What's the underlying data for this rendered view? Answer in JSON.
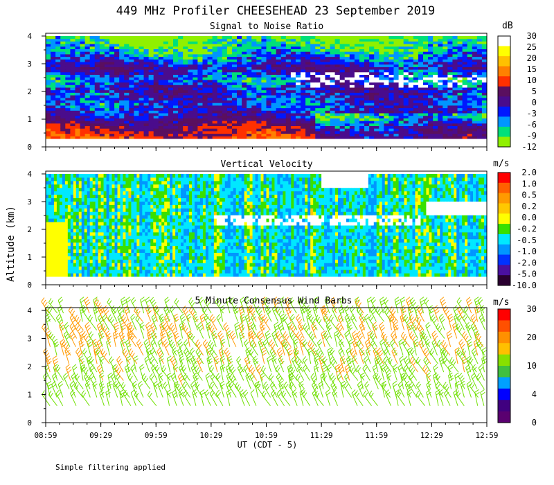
{
  "title": "449 MHz Profiler CHEESEHEAD 23 September 2019",
  "footnote": "Simple filtering applied",
  "ylabel": "Altitude (km)",
  "xlabel": "UT  (CDT - 5)",
  "chart_data": [
    {
      "type": "heatmap",
      "title": "Signal to Noise Ratio",
      "units": "dB",
      "x_ticks": [
        "08:59",
        "09:29",
        "09:59",
        "10:29",
        "10:59",
        "11:29",
        "11:59",
        "12:29",
        "12:59"
      ],
      "y_ticks": [
        "0",
        "1",
        "2",
        "3",
        "4"
      ],
      "ylim": [
        0,
        4.1
      ],
      "colorbar": {
        "labels": [
          "30",
          "25",
          "20",
          "15",
          "10",
          "5",
          "0",
          "-3",
          "-6",
          "-9",
          "-12"
        ],
        "colors": [
          "#ffffff",
          "#ffff00",
          "#ffc000",
          "#ff8000",
          "#ff3000",
          "#5a0f5f",
          "#4a0c8c",
          "#0018ff",
          "#0096ff",
          "#00e07a",
          "#90f000"
        ]
      },
      "valid_range_km": [
        0.3,
        4.0
      ],
      "profile_dB": [
        {
          "alt_km": 0.3,
          "value": 12
        },
        {
          "alt_km": 0.7,
          "value": 8
        },
        {
          "alt_km": 1.0,
          "value": 2
        },
        {
          "alt_km": 1.5,
          "value": -2
        },
        {
          "alt_km": 2.0,
          "value": 1
        },
        {
          "alt_km": 2.4,
          "value": -4
        },
        {
          "alt_km": 2.8,
          "value": 2
        },
        {
          "alt_km": 3.2,
          "value": -4
        },
        {
          "alt_km": 3.6,
          "value": -8
        },
        {
          "alt_km": 4.0,
          "value": -11
        }
      ]
    },
    {
      "type": "heatmap",
      "title": "Vertical Velocity",
      "units": "m/s",
      "x_ticks": [
        "08:59",
        "09:29",
        "09:59",
        "10:29",
        "10:59",
        "11:29",
        "11:59",
        "12:29",
        "12:59"
      ],
      "y_ticks": [
        "0",
        "1",
        "2",
        "3",
        "4"
      ],
      "ylim": [
        0,
        4.1
      ],
      "colorbar": {
        "labels": [
          "2.0",
          "1.0",
          "0.5",
          "0.2",
          "0.0",
          "-0.2",
          "-0.5",
          "-1.0",
          "-2.0",
          "-5.0",
          "-10.0"
        ],
        "colors": [
          "#ff0000",
          "#ff6000",
          "#ff9a00",
          "#ffc800",
          "#ffff00",
          "#38e000",
          "#00e8ff",
          "#0096ff",
          "#0032ff",
          "#4a10a0",
          "#2a0030"
        ]
      },
      "valid_range_km": [
        0.3,
        4.0
      ],
      "typical_values_m_s": [
        -0.5,
        -0.2,
        0.0
      ]
    },
    {
      "type": "wind-barbs",
      "title": "5 Minute Consensus Wind Barbs",
      "units": "m/s",
      "x_ticks": [
        "08:59",
        "09:29",
        "09:59",
        "10:29",
        "10:59",
        "11:29",
        "11:59",
        "12:29",
        "12:59"
      ],
      "y_ticks": [
        "0",
        "1",
        "2",
        "3",
        "4"
      ],
      "ylim": [
        0,
        4.1
      ],
      "colorbar": {
        "labels": [
          "30",
          "20",
          "10",
          "4",
          "0"
        ],
        "colors": [
          "#ff0000",
          "#ff5000",
          "#ff9000",
          "#ffc000",
          "#88e000",
          "#40c040",
          "#00a0ff",
          "#0000ff",
          "#400080",
          "#5a0070"
        ]
      },
      "barb_levels_km": [
        0.6,
        0.9,
        1.2,
        1.5,
        1.8,
        2.1,
        2.4,
        2.7,
        3.0,
        3.3,
        3.6,
        3.9
      ],
      "speed_profile_m_s": [
        {
          "alt_km": 0.6,
          "speed": 10
        },
        {
          "alt_km": 1.5,
          "speed": 12
        },
        {
          "alt_km": 2.4,
          "speed": 14
        },
        {
          "alt_km": 3.0,
          "speed": 15
        },
        {
          "alt_km": 3.9,
          "speed": 12
        }
      ]
    }
  ]
}
